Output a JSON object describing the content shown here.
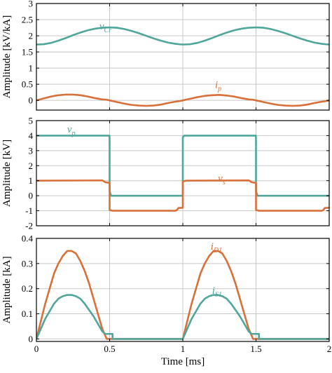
{
  "colors": {
    "teal": "#4fa69a",
    "orange": "#d8703a",
    "grid": "#c8c8c8",
    "frame": "#000000"
  },
  "shared_x": {
    "label": "Time [ms]",
    "range": [
      0,
      2
    ],
    "tick_values": [
      0,
      0.5,
      1,
      1.5,
      2
    ],
    "tick_labels": [
      "0",
      "0.5",
      "1",
      "1.5",
      "2"
    ]
  },
  "chart_data": [
    {
      "type": "line",
      "ylabel": "Amplitude [kV/kA]",
      "ylim": [
        -0.3,
        3.0
      ],
      "y_ticks": [
        0,
        0.5,
        1,
        1.5,
        2,
        2.5,
        3
      ],
      "y_tick_labels": [
        "0",
        "0.5",
        "1",
        "1.5",
        "2",
        "2.5",
        "3"
      ],
      "grid": true,
      "series": [
        {
          "name": "vCr",
          "label_main": "v",
          "label_sub": "Cr",
          "color": "#4fa69a",
          "label_at": [
            0.43,
            2.2
          ],
          "x": [
            0,
            0.05,
            0.1,
            0.15,
            0.2,
            0.25,
            0.3,
            0.35,
            0.4,
            0.45,
            0.5,
            0.55,
            0.6,
            0.65,
            0.7,
            0.75,
            0.8,
            0.85,
            0.9,
            0.95,
            1.0,
            1.05,
            1.1,
            1.15,
            1.2,
            1.25,
            1.3,
            1.35,
            1.4,
            1.45,
            1.5,
            1.55,
            1.6,
            1.65,
            1.7,
            1.75,
            1.8,
            1.85,
            1.9,
            1.95,
            2.0
          ],
          "y": [
            1.73,
            1.74,
            1.78,
            1.85,
            1.93,
            2.02,
            2.1,
            2.17,
            2.22,
            2.25,
            2.26,
            2.25,
            2.21,
            2.15,
            2.08,
            2.0,
            1.92,
            1.85,
            1.79,
            1.75,
            1.73,
            1.74,
            1.78,
            1.85,
            1.93,
            2.02,
            2.1,
            2.17,
            2.22,
            2.25,
            2.26,
            2.25,
            2.21,
            2.15,
            2.08,
            2.0,
            1.92,
            1.85,
            1.79,
            1.75,
            1.73
          ]
        },
        {
          "name": "ip",
          "label_main": "i",
          "label_sub": "p",
          "color": "#d8703a",
          "label_at": [
            1.22,
            0.38
          ],
          "x": [
            0,
            0.05,
            0.1,
            0.15,
            0.2,
            0.25,
            0.3,
            0.35,
            0.4,
            0.45,
            0.48,
            0.5,
            0.52,
            0.55,
            0.6,
            0.65,
            0.7,
            0.75,
            0.8,
            0.85,
            0.9,
            0.95,
            0.98,
            1.0,
            1.02,
            1.05,
            1.1,
            1.15,
            1.2,
            1.25,
            1.3,
            1.35,
            1.4,
            1.45,
            1.48,
            1.5,
            1.52,
            1.55,
            1.6,
            1.65,
            1.7,
            1.75,
            1.8,
            1.85,
            1.9,
            1.95,
            1.98,
            2.0
          ],
          "y": [
            0.0,
            0.06,
            0.12,
            0.16,
            0.18,
            0.18,
            0.16,
            0.12,
            0.07,
            0.03,
            0.02,
            0.0,
            -0.02,
            -0.05,
            -0.1,
            -0.14,
            -0.16,
            -0.17,
            -0.16,
            -0.13,
            -0.08,
            -0.04,
            -0.02,
            0.0,
            0.02,
            0.05,
            0.1,
            0.14,
            0.16,
            0.17,
            0.15,
            0.12,
            0.07,
            0.03,
            0.02,
            0.0,
            -0.02,
            -0.05,
            -0.1,
            -0.14,
            -0.16,
            -0.17,
            -0.16,
            -0.13,
            -0.08,
            -0.04,
            -0.02,
            0.0
          ]
        }
      ]
    },
    {
      "type": "line",
      "ylabel": "Amplitude [kV]",
      "ylim": [
        -2,
        5
      ],
      "y_ticks": [
        -2,
        -1,
        0,
        1,
        2,
        3,
        4,
        5
      ],
      "y_tick_labels": [
        "-2",
        "-1",
        "0",
        "1",
        "2",
        "3",
        "4",
        "5"
      ],
      "grid": true,
      "series": [
        {
          "name": "vp",
          "label_main": "v",
          "label_sub": "p",
          "color": "#4fa69a",
          "label_at": [
            0.21,
            4.2
          ],
          "x": [
            0,
            0.499,
            0.5,
            0.5,
            0.51,
            0.999,
            1.0,
            1.0,
            1.01,
            1.499,
            1.5,
            1.5,
            1.51,
            2.0
          ],
          "y": [
            4.0,
            4.0,
            3.6,
            0.3,
            0.0,
            0.0,
            0.3,
            3.9,
            4.0,
            4.0,
            3.6,
            0.3,
            0.0,
            0.0
          ]
        },
        {
          "name": "vs",
          "label_main": "v",
          "label_sub": "s",
          "color": "#d8703a",
          "label_at": [
            1.24,
            0.95
          ],
          "x": [
            0,
            0.45,
            0.47,
            0.5,
            0.5,
            0.52,
            0.95,
            0.96,
            0.97,
            1.0,
            1.0,
            1.02,
            1.45,
            1.47,
            1.5,
            1.5,
            1.52,
            1.95,
            1.96,
            1.97,
            2.0
          ],
          "y": [
            1.0,
            1.02,
            0.9,
            0.85,
            -0.95,
            -1.0,
            -1.0,
            -0.95,
            -0.82,
            -0.8,
            0.95,
            1.0,
            1.02,
            0.9,
            0.85,
            -0.95,
            -1.0,
            -1.0,
            -0.95,
            -0.82,
            -0.8
          ]
        }
      ]
    },
    {
      "type": "line",
      "ylabel": "Amplitude [kA]",
      "ylim": [
        -0.01,
        0.4
      ],
      "y_ticks": [
        0,
        0.1,
        0.2,
        0.3,
        0.4
      ],
      "y_tick_labels": [
        "0",
        "0.1",
        "0.2",
        "0.3",
        "0.4"
      ],
      "grid": true,
      "xlabel": "Time [ms]",
      "series": [
        {
          "name": "iD1",
          "label_main": "i",
          "label_sub": "D1",
          "color": "#d8703a",
          "label_at": [
            1.19,
            0.355
          ],
          "x": [
            0,
            0.03,
            0.06,
            0.09,
            0.12,
            0.15,
            0.18,
            0.21,
            0.24,
            0.27,
            0.3,
            0.33,
            0.36,
            0.39,
            0.42,
            0.45,
            0.48,
            0.5,
            0.6,
            0.7,
            0.8,
            0.9,
            1.0,
            1.03,
            1.06,
            1.09,
            1.12,
            1.15,
            1.18,
            1.21,
            1.24,
            1.27,
            1.3,
            1.33,
            1.36,
            1.39,
            1.42,
            1.45,
            1.48,
            1.5,
            1.6,
            1.7,
            1.8,
            1.9,
            2.0
          ],
          "y": [
            0.0,
            0.07,
            0.14,
            0.2,
            0.26,
            0.3,
            0.33,
            0.35,
            0.35,
            0.34,
            0.31,
            0.27,
            0.22,
            0.16,
            0.1,
            0.04,
            0.0,
            0.0,
            0.0,
            0.0,
            0.0,
            0.0,
            0.0,
            0.07,
            0.14,
            0.2,
            0.26,
            0.3,
            0.33,
            0.35,
            0.35,
            0.34,
            0.31,
            0.27,
            0.22,
            0.16,
            0.1,
            0.04,
            0.0,
            0.0,
            0.0,
            0.0,
            0.0,
            0.0,
            0.0
          ]
        },
        {
          "name": "iS1",
          "label_main": "i",
          "label_sub": "S1",
          "color": "#4fa69a",
          "label_at": [
            1.2,
            0.18
          ],
          "x": [
            0,
            0.03,
            0.06,
            0.09,
            0.12,
            0.15,
            0.18,
            0.21,
            0.24,
            0.27,
            0.3,
            0.33,
            0.36,
            0.39,
            0.42,
            0.45,
            0.47,
            0.47,
            0.52,
            0.52,
            0.6,
            0.7,
            0.8,
            0.9,
            1.0,
            1.03,
            1.06,
            1.09,
            1.12,
            1.15,
            1.18,
            1.21,
            1.24,
            1.27,
            1.3,
            1.33,
            1.36,
            1.39,
            1.42,
            1.45,
            1.47,
            1.47,
            1.52,
            1.52,
            1.6,
            1.7,
            1.8,
            1.9,
            2.0
          ],
          "y": [
            0.0,
            0.04,
            0.08,
            0.11,
            0.14,
            0.16,
            0.17,
            0.175,
            0.175,
            0.17,
            0.16,
            0.14,
            0.115,
            0.09,
            0.06,
            0.03,
            0.02,
            0.02,
            0.02,
            0.0,
            0.0,
            0.0,
            0.0,
            0.0,
            0.0,
            0.04,
            0.08,
            0.11,
            0.14,
            0.16,
            0.17,
            0.175,
            0.175,
            0.17,
            0.16,
            0.14,
            0.115,
            0.09,
            0.06,
            0.03,
            0.02,
            0.02,
            0.02,
            0.0,
            0.0,
            0.0,
            0.0,
            0.0,
            0.0
          ]
        }
      ]
    }
  ]
}
